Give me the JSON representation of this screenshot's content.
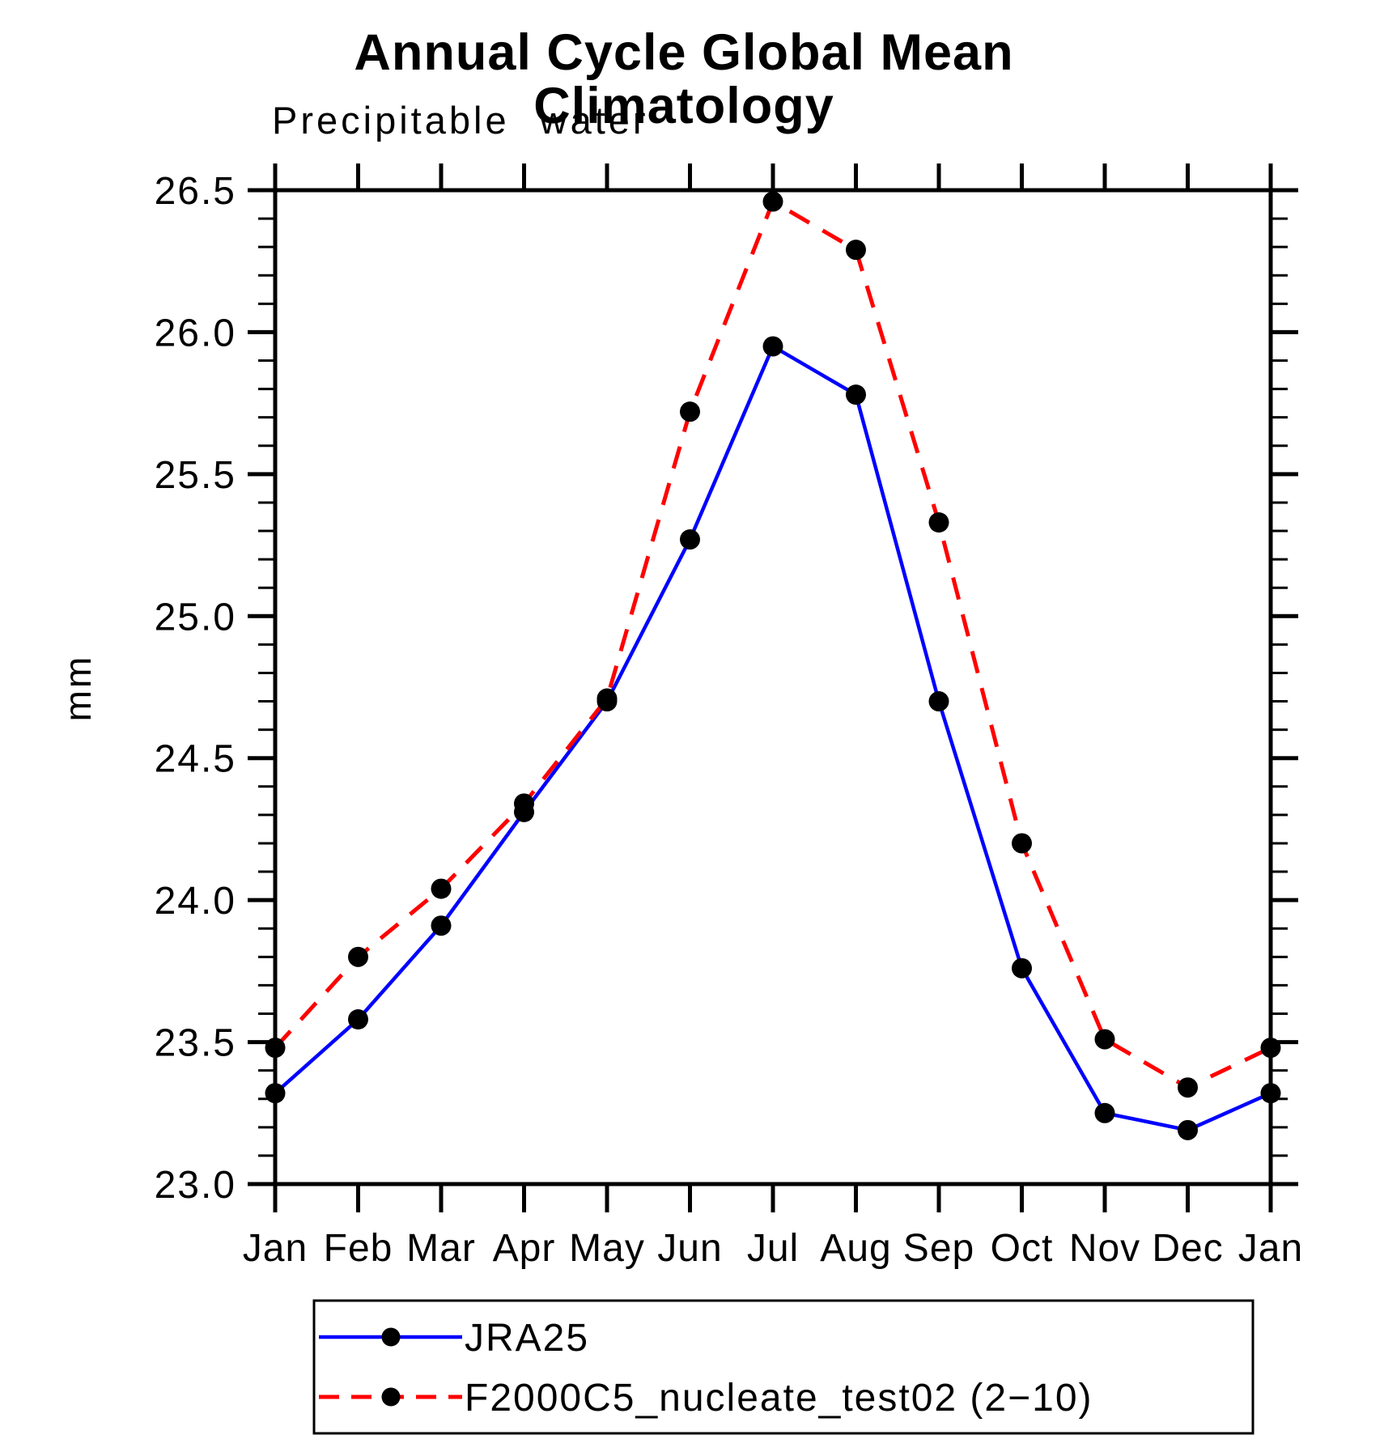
{
  "page": {
    "background": "#ffffff"
  },
  "chart_data": {
    "type": "line",
    "title": "Annual Cycle Global Mean Climatology",
    "subtitle": "Precipitable water",
    "ylabel": "mm",
    "xlabel": "",
    "categories": [
      "Jan",
      "Feb",
      "Mar",
      "Apr",
      "May",
      "Jun",
      "Jul",
      "Aug",
      "Sep",
      "Oct",
      "Nov",
      "Dec",
      "Jan"
    ],
    "ylim": [
      23.0,
      26.5
    ],
    "ytick_major": 0.5,
    "ytick_minor": 0.1,
    "y_tick_labels": [
      "23.0",
      "23.5",
      "24.0",
      "24.5",
      "25.0",
      "25.5",
      "26.0",
      "26.5"
    ],
    "grid": false,
    "legend_position": "bottom",
    "axis_color": "#000000",
    "marker_color": "#000000",
    "series": [
      {
        "name": "JRA25",
        "color": "#0000ff",
        "style": "solid",
        "marker": "filled-circle",
        "values": [
          23.32,
          23.58,
          23.91,
          24.31,
          24.7,
          25.27,
          25.95,
          25.78,
          24.7,
          23.76,
          23.25,
          23.19,
          23.32
        ]
      },
      {
        "name": "F2000C5_nucleate_test02 (2−10)",
        "color": "#ff0000",
        "style": "dashed",
        "marker": "filled-circle",
        "values": [
          23.48,
          23.8,
          24.04,
          24.34,
          24.71,
          25.72,
          26.46,
          26.29,
          25.33,
          24.2,
          23.51,
          23.34,
          23.48
        ]
      }
    ]
  }
}
